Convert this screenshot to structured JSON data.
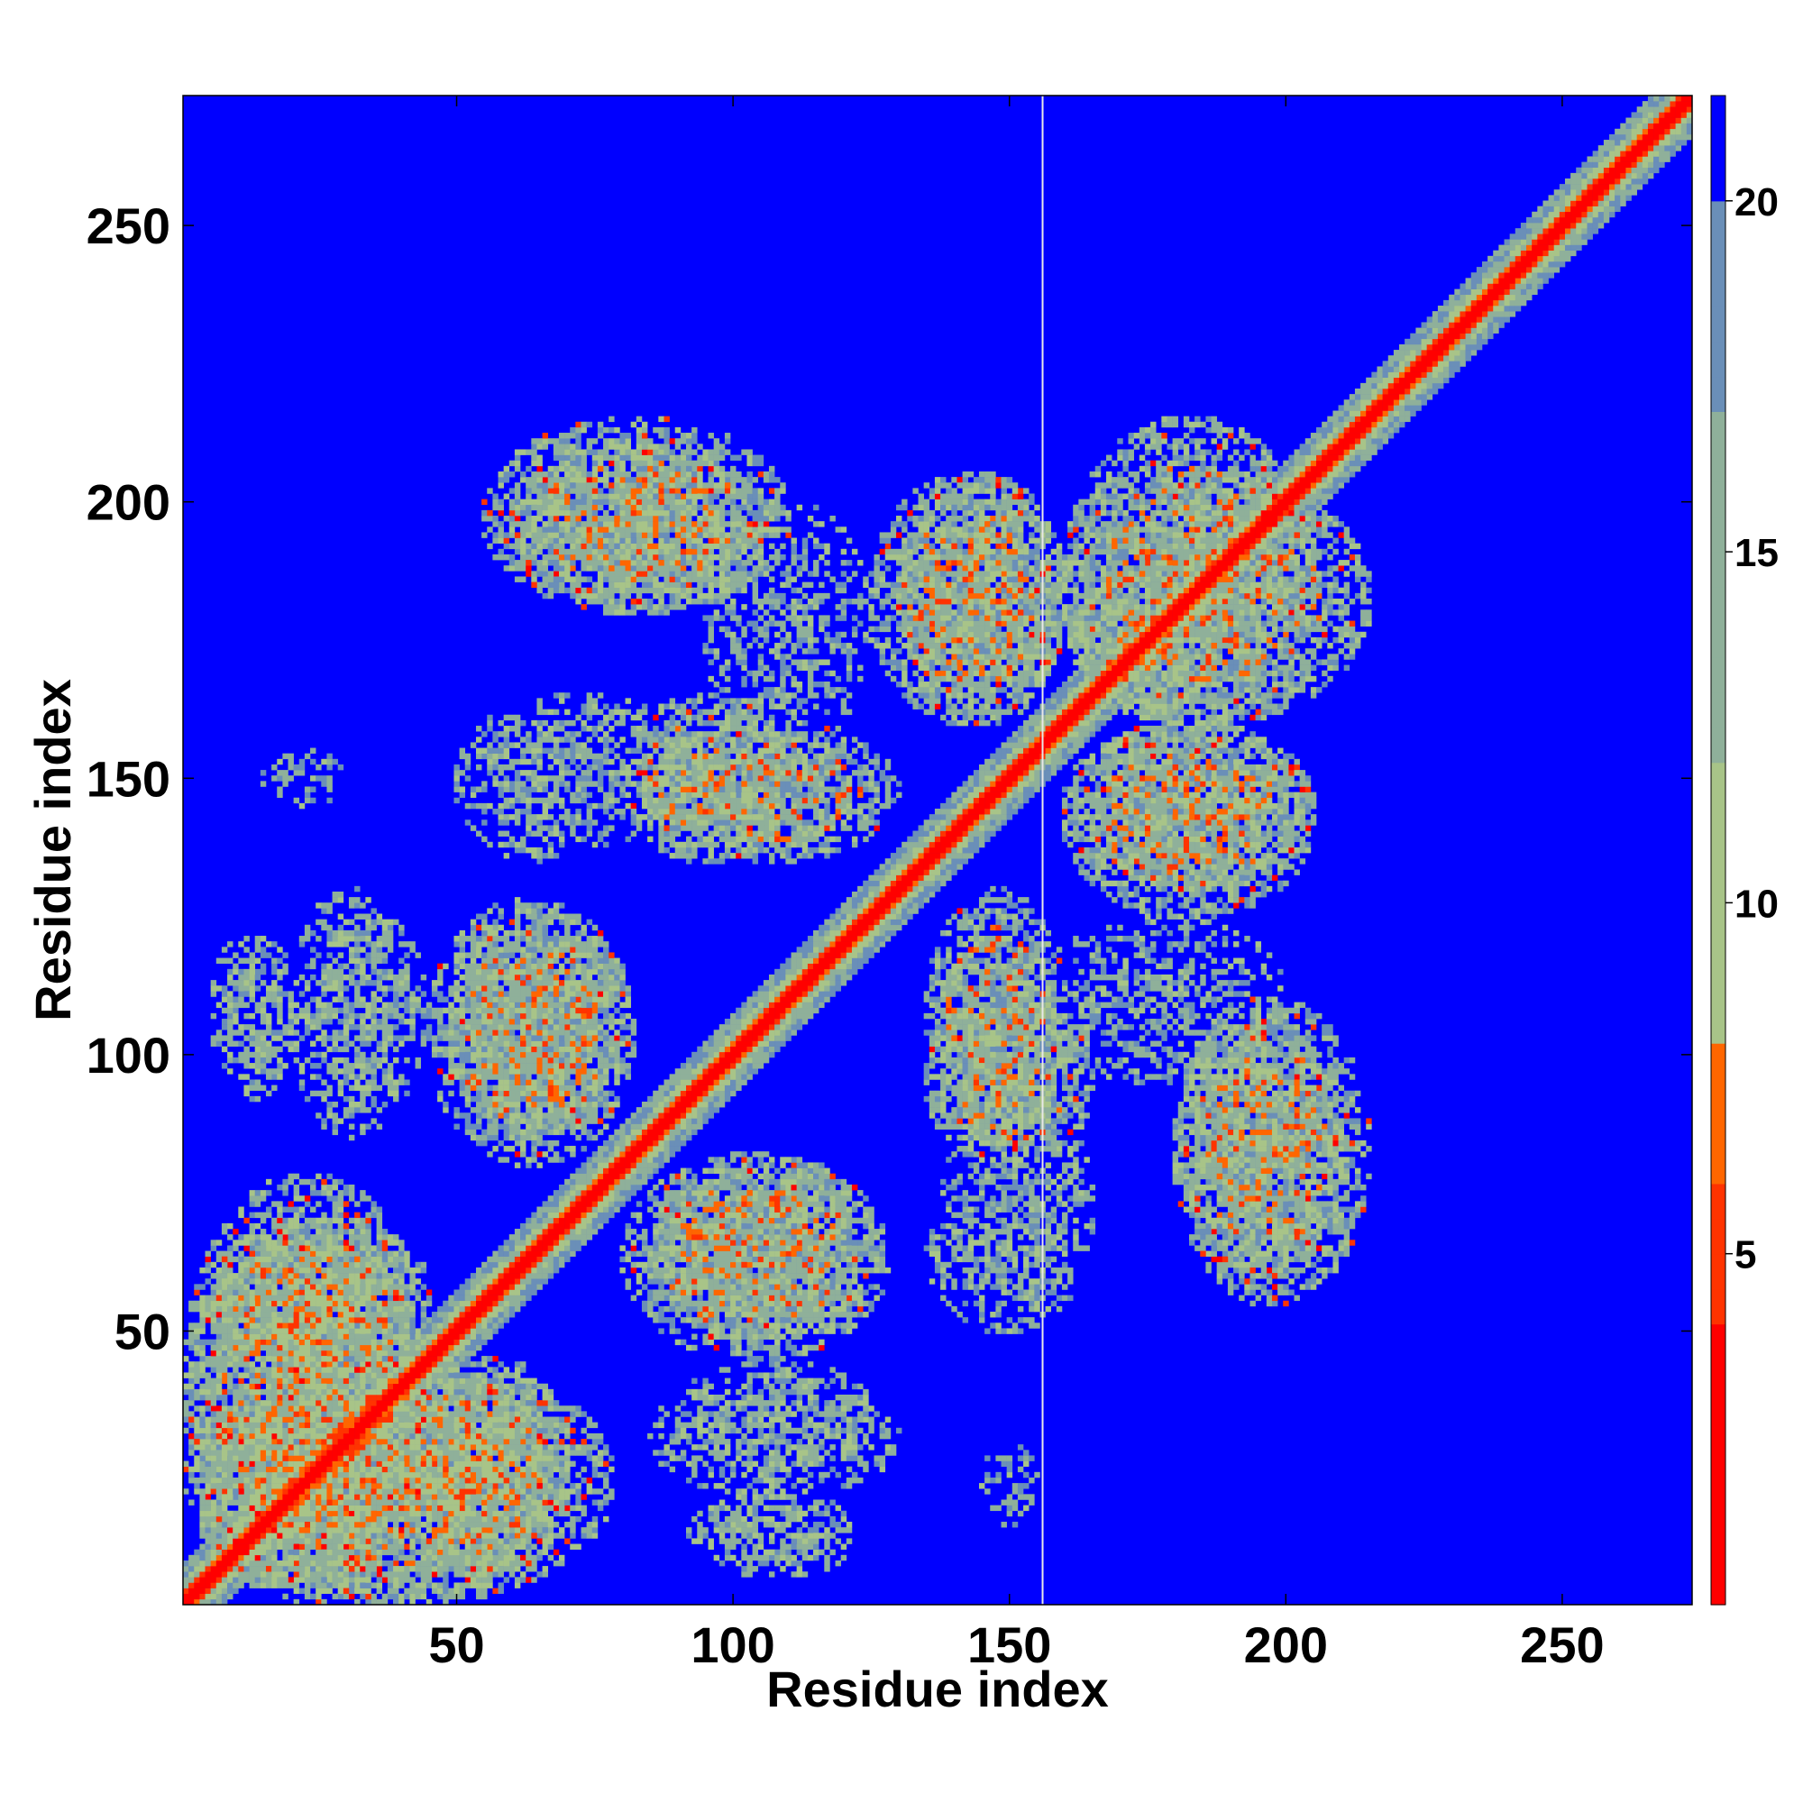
{
  "chart_data": {
    "type": "heatmap",
    "title": "",
    "xlabel": "Residue index",
    "ylabel": "Residue index",
    "xlim": [
      1,
      273
    ],
    "ylim": [
      1,
      273
    ],
    "x_ticks": [
      50,
      100,
      150,
      200,
      250
    ],
    "y_ticks": [
      50,
      100,
      150,
      200,
      250
    ],
    "colorbar": {
      "range": [
        0,
        21.5
      ],
      "ticks": [
        5,
        10,
        15,
        20
      ],
      "stops": [
        {
          "value": 0,
          "color": "#ff0000"
        },
        {
          "value": 4,
          "color": "#ff3300"
        },
        {
          "value": 6,
          "color": "#ff6600"
        },
        {
          "value": 8,
          "color": "#ffaa00"
        },
        {
          "value": 8.01,
          "color": "#a8c488"
        },
        {
          "value": 12,
          "color": "#8fb09a"
        },
        {
          "value": 17,
          "color": "#6a8fb8"
        },
        {
          "value": 20,
          "color": "#5f86c4"
        },
        {
          "value": 20.01,
          "color": "#0000ff"
        },
        {
          "value": 21.5,
          "color": "#0000ff"
        }
      ]
    },
    "background_color": "#0000ff",
    "marker_line_x": 156,
    "diagonal": {
      "from": 1,
      "to": 273
    },
    "contact_regions": [
      {
        "x": [
          1,
          45
        ],
        "y": [
          5,
          78
        ],
        "level": "mixed"
      },
      {
        "x": [
          1,
          70
        ],
        "y": [
          1,
          45
        ],
        "level": "mixed"
      },
      {
        "x": [
          45,
          70
        ],
        "y": [
          5,
          45
        ],
        "level": "mixed"
      },
      {
        "x": [
          5,
          22
        ],
        "y": [
          95,
          122
        ],
        "level": "sparse"
      },
      {
        "x": [
          25,
          45
        ],
        "y": [
          90,
          125
        ],
        "level": "sparse"
      },
      {
        "x": [
          48,
          82
        ],
        "y": [
          85,
          125
        ],
        "level": "mixed"
      },
      {
        "x": [
          80,
          128
        ],
        "y": [
          45,
          82
        ],
        "level": "mixed"
      },
      {
        "x": [
          85,
          130
        ],
        "y": [
          20,
          42
        ],
        "level": "sparse"
      },
      {
        "x": [
          92,
          120
        ],
        "y": [
          8,
          20
        ],
        "level": "sparse"
      },
      {
        "x": [
          50,
          75
        ],
        "y": [
          135,
          160
        ],
        "level": "sparse"
      },
      {
        "x": [
          80,
          110
        ],
        "y": [
          135,
          165
        ],
        "level": "mixed"
      },
      {
        "x": [
          60,
          105
        ],
        "y": [
          180,
          210
        ],
        "level": "mixed"
      },
      {
        "x": [
          138,
          165
        ],
        "y": [
          50,
          95
        ],
        "level": "sparse"
      },
      {
        "x": [
          135,
          160
        ],
        "y": [
          85,
          130
        ],
        "level": "mixed"
      },
      {
        "x": [
          125,
          160
        ],
        "y": [
          160,
          205
        ],
        "level": "mixed"
      },
      {
        "x": [
          158,
          215
        ],
        "y": [
          160,
          205
        ],
        "level": "mixed"
      },
      {
        "x": [
          160,
          205
        ],
        "y": [
          130,
          160
        ],
        "level": "mixed"
      },
      {
        "x": [
          180,
          215
        ],
        "y": [
          55,
          110
        ],
        "level": "mixed"
      },
      {
        "x": [
          155,
          200
        ],
        "y": [
          95,
          125
        ],
        "level": "sparse"
      },
      {
        "x": [
          15,
          30
        ],
        "y": [
          145,
          155
        ],
        "level": "sparse"
      }
    ]
  }
}
